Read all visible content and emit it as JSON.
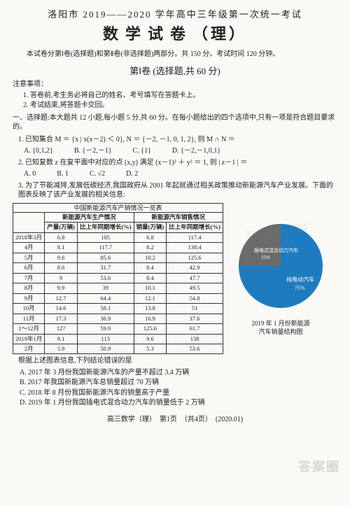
{
  "header_line": "洛阳市 2019——2020 学年高中三年级第一次统一考试",
  "title_main": "数学试卷",
  "title_paren": "（理）",
  "intro": "本试卷分第Ⅰ卷(选择题)和第Ⅱ卷(非选择题)两部分。共 150 分。考试时间 120 分钟。",
  "section1_title": "第Ⅰ卷 (选择题,共 60 分)",
  "notice_label": "注意事项：",
  "notice_items": [
    "1. 答卷前,考生务必将自己的姓名、考号填写在答题卡上。",
    "2. 考试结束,将答题卡交回。"
  ],
  "q_intro": "一、选择题:本大题共 12 小题,每小题 5 分,共 60 分。在每小题给出的四个选项中,只有一项是符合题目要求的。",
  "q1": {
    "text": "1. 已知集合 M ＝ {x | x(x－2) ＜ 0}, N ＝ {－2, －1, 0, 1, 2}, 则 M ∩ N ＝",
    "choices": [
      "A. {0,1,2}",
      "B. {－2,－1}",
      "C. {1}",
      "D. {－2,－1,0,1}"
    ]
  },
  "q2": {
    "text": "2. 已知复数 z 在复平面中对应的点 (x,y) 满足 (x－1)² ＋ y² ＝ 1, 则 | z－1 | ＝",
    "choices": [
      "A. 0",
      "B. 1",
      "C. √2",
      "D. 2"
    ]
  },
  "q3": {
    "text": "3. 为了节能减排,发展低碳经济,我国政府从 2001 年起就通过相关政策推动新能源汽车产业发展。下面的图表反映了该产业发展的相关信息:",
    "table_title": "中国新能源汽车产销情况一览表",
    "head1": [
      "",
      "新能源汽车生产情况",
      "新能源汽车销售情况"
    ],
    "head2": [
      "",
      "产量(万辆)",
      "比上年同期增长(%)",
      "销量(万辆)",
      "比上年同期增长(%)"
    ],
    "rows": [
      [
        "2018年3月",
        "6.8",
        "105",
        "6.8",
        "117.4"
      ],
      [
        "4月",
        "8.1",
        "117.7",
        "8.2",
        "138.4"
      ],
      [
        "5月",
        "9.6",
        "85.6",
        "10.2",
        "125.6"
      ],
      [
        "6月",
        "8.6",
        "31.7",
        "8.4",
        "42.9"
      ],
      [
        "7月",
        "9",
        "53.6",
        "8.4",
        "47.7"
      ],
      [
        "8月",
        "9.9",
        "39",
        "10.1",
        "49.5"
      ],
      [
        "9月",
        "12.7",
        "64.4",
        "12.1",
        "54.8"
      ],
      [
        "10月",
        "14.6",
        "58.1",
        "13.8",
        "51"
      ],
      [
        "11月",
        "17.3",
        "36.9",
        "16.9",
        "37.6"
      ],
      [
        "1～12月",
        "127",
        "59.9",
        "125.6",
        "61.7"
      ],
      [
        "2019年1月",
        "9.1",
        "113",
        "9.6",
        "138"
      ],
      [
        "2月",
        "5.9",
        "50.9",
        "5.3",
        "53.6"
      ]
    ],
    "pie": {
      "slice1_label": "插电式混合动力汽车",
      "slice1_pct": "25%",
      "slice1_value": 25,
      "slice1_color": "#6b6b6b",
      "slice2_label": "纯电动汽车",
      "slice2_pct": "75%",
      "slice2_value": 75,
      "slice2_color": "#1f7bbf",
      "caption_l1": "2019 年 1 月份新能源",
      "caption_l2": "汽车销量结构图"
    },
    "post_table": "根据上述图表信息,下列结论错误的是",
    "answers": [
      "A. 2017 年 3 月份我国新能源汽车的产量不超过 3.4 万辆",
      "B. 2017 年我国新能源汽车总销量超过 70 万辆",
      "C. 2018 年 8 月份我国新能源汽车的销量高于产量",
      "D. 2019 年 1 月份我国插电式混合动力汽车的销量低于 2 万辆"
    ]
  },
  "footer": "高三数学（理）　第1页　（共4页）　(2020.01)",
  "watermark": "答案圈",
  "watermark2": "MXQE.COM"
}
